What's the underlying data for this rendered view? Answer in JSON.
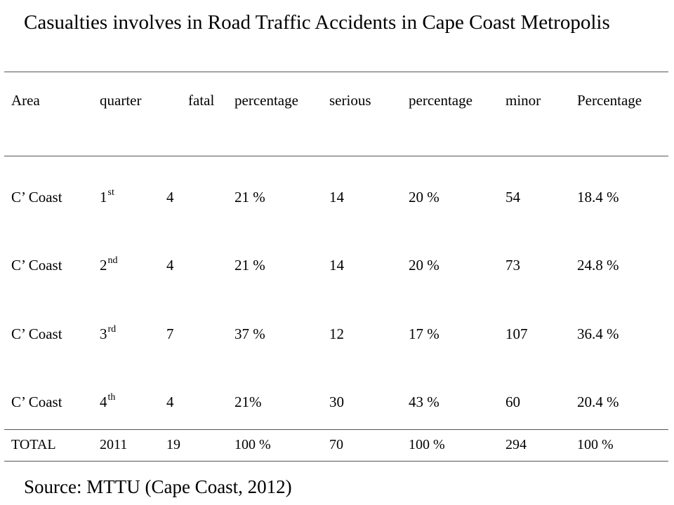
{
  "title": "Casualties involves in Road Traffic Accidents in Cape Coast Metropolis",
  "table": {
    "headers": {
      "area": "Area",
      "quarter": "quarter",
      "fatal": "fatal",
      "fatal_percentage": "percentage",
      "serious": "serious",
      "serious_percentage": "percentage",
      "minor": "minor",
      "minor_percentage": "Percentage"
    },
    "rows": [
      {
        "area": "C’ Coast",
        "quarter_num": "1",
        "quarter_suffix": "st",
        "fatal": "4",
        "fatal_pct": "21 %",
        "serious": "14",
        "serious_pct": "20 %",
        "minor": "54",
        "minor_pct": "18.4 %"
      },
      {
        "area": "C’ Coast",
        "quarter_num": "2",
        "quarter_suffix": "nd",
        "fatal": "4",
        "fatal_pct": "21 %",
        "serious": "14",
        "serious_pct": "20 %",
        "minor": "73",
        "minor_pct": "24.8 %"
      },
      {
        "area": "C’ Coast",
        "quarter_num": "3",
        "quarter_suffix": "rd",
        "fatal": "7",
        "fatal_pct": "37 %",
        "serious": "12",
        "serious_pct": "17 %",
        "minor": "107",
        "minor_pct": "36.4 %"
      },
      {
        "area": "C’ Coast",
        "quarter_num": "4",
        "quarter_suffix": "th",
        "fatal": "4",
        "fatal_pct": "21%",
        "serious": "30",
        "serious_pct": "43 %",
        "minor": "60",
        "minor_pct": "20.4 %"
      }
    ],
    "total": {
      "area": "TOTAL",
      "quarter": "2011",
      "fatal": "19",
      "fatal_pct": "100 %",
      "serious": "70",
      "serious_pct": "100 %",
      "minor": "294",
      "minor_pct": "100 %"
    }
  },
  "source": "Source:  MTTU (Cape Coast, 2012)"
}
